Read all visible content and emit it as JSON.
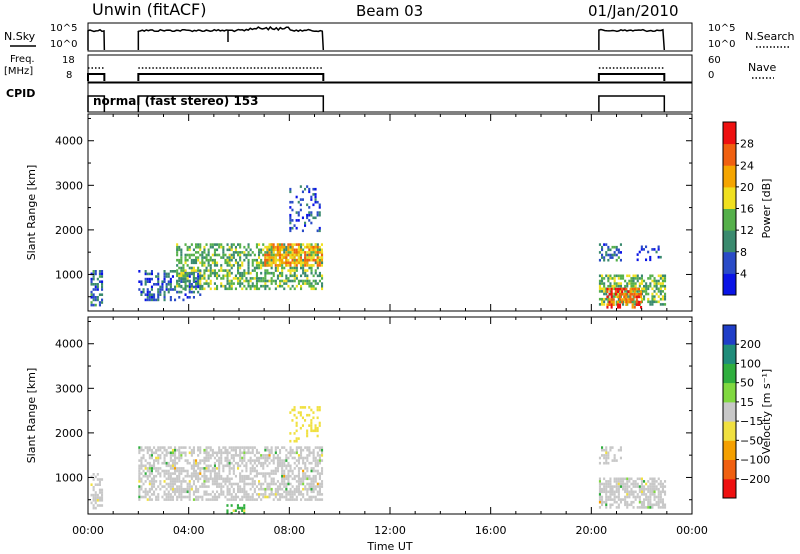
{
  "header": {
    "station": "Unwin (fitACF)",
    "beam": "Beam 03",
    "date": "01/Jan/2010"
  },
  "strips": {
    "nsky_label": "N.Sky",
    "nsky_ticks": [
      "10^5",
      "10^0"
    ],
    "nsearch_label": "N.Search",
    "nsearch_ticks": [
      "10^5",
      "10^0"
    ],
    "freq_label_line1": "Freq.",
    "freq_label_line2": "[MHz]",
    "freq_ticks": [
      "18",
      "8"
    ],
    "nave_label": "Nave",
    "nave_ticks": [
      "60",
      "0"
    ],
    "cpid_label": "CPID",
    "cpid_text": "normal (fast stereo) 153"
  },
  "chart_data": [
    {
      "type": "heatmap",
      "panel": "power",
      "ylabel": "Slant Range [km]",
      "ylim": [
        180,
        4600
      ],
      "yticks": [
        1000,
        2000,
        3000,
        4000
      ],
      "xlim": [
        0,
        24
      ],
      "data_segments_hours": [
        [
          0.0,
          0.65
        ],
        [
          2.0,
          9.35
        ],
        [
          20.3,
          22.9
        ]
      ],
      "colorbar": {
        "label": "Power [dB]",
        "ticks": [
          "4",
          "8",
          "12",
          "16",
          "20",
          "24",
          "28"
        ],
        "colors": [
          "#0a14e6",
          "#2a4bc7",
          "#3a8a6e",
          "#55b04a",
          "#f0e020",
          "#f5a500",
          "#f06010",
          "#ee1010"
        ]
      },
      "scatter_regions": [
        {
          "t0": 0.1,
          "t1": 0.55,
          "r0": 300,
          "r1": 1100,
          "density": 0.6,
          "power": 8
        },
        {
          "t0": 2.0,
          "t1": 4.5,
          "r0": 450,
          "r1": 1100,
          "density": 0.45,
          "power": 7
        },
        {
          "t0": 3.5,
          "t1": 9.3,
          "r0": 700,
          "r1": 1700,
          "density": 0.55,
          "power": 13
        },
        {
          "t0": 7.0,
          "t1": 9.3,
          "r0": 1200,
          "r1": 1700,
          "density": 0.6,
          "power": 22
        },
        {
          "t0": 8.0,
          "t1": 9.2,
          "r0": 2000,
          "r1": 3000,
          "density": 0.25,
          "power": 6
        },
        {
          "t0": 20.3,
          "t1": 22.9,
          "r0": 300,
          "r1": 1000,
          "density": 0.65,
          "power": 14
        },
        {
          "t0": 20.6,
          "t1": 22.0,
          "r0": 250,
          "r1": 700,
          "density": 0.6,
          "power": 26
        },
        {
          "t0": 20.3,
          "t1": 21.2,
          "r0": 1300,
          "r1": 1700,
          "density": 0.4,
          "power": 8
        },
        {
          "t0": 21.8,
          "t1": 22.8,
          "r0": 1350,
          "r1": 1650,
          "density": 0.35,
          "power": 5
        }
      ]
    },
    {
      "type": "heatmap",
      "panel": "velocity",
      "ylabel": "Slant Range [km]",
      "xlabel": "Time UT",
      "ylim": [
        180,
        4600
      ],
      "yticks": [
        1000,
        2000,
        3000,
        4000
      ],
      "xlim": [
        0,
        24
      ],
      "xticks": [
        "00:00",
        "04:00",
        "08:00",
        "12:00",
        "16:00",
        "20:00",
        "00:00"
      ],
      "colorbar": {
        "label": "Velocity [m s^-1]",
        "ticks": [
          "200",
          "100",
          "50",
          "15",
          "-15",
          "-50",
          "-100",
          "-200"
        ],
        "colors": [
          "#1f3ec8",
          "#1f8c7a",
          "#2fae3e",
          "#80d840",
          "#c8c8c8",
          "#f0e040",
          "#f5a000",
          "#f06010",
          "#ee1010"
        ]
      },
      "scatter_regions": [
        {
          "t0": 0.1,
          "t1": 0.55,
          "r0": 300,
          "r1": 1100,
          "density": 0.5,
          "velocity": 0
        },
        {
          "t0": 2.0,
          "t1": 9.3,
          "r0": 500,
          "r1": 1700,
          "density": 0.6,
          "velocity": 0
        },
        {
          "t0": 8.0,
          "t1": 9.2,
          "r0": 1800,
          "r1": 2600,
          "density": 0.25,
          "velocity": -40
        },
        {
          "t0": 20.3,
          "t1": 22.9,
          "r0": 300,
          "r1": 1000,
          "density": 0.65,
          "velocity": 0
        },
        {
          "t0": 20.3,
          "t1": 21.2,
          "r0": 1300,
          "r1": 1700,
          "density": 0.4,
          "velocity": 0
        },
        {
          "t0": 5.5,
          "t1": 6.2,
          "r0": 200,
          "r1": 400,
          "density": 0.4,
          "velocity": 60
        }
      ]
    }
  ]
}
